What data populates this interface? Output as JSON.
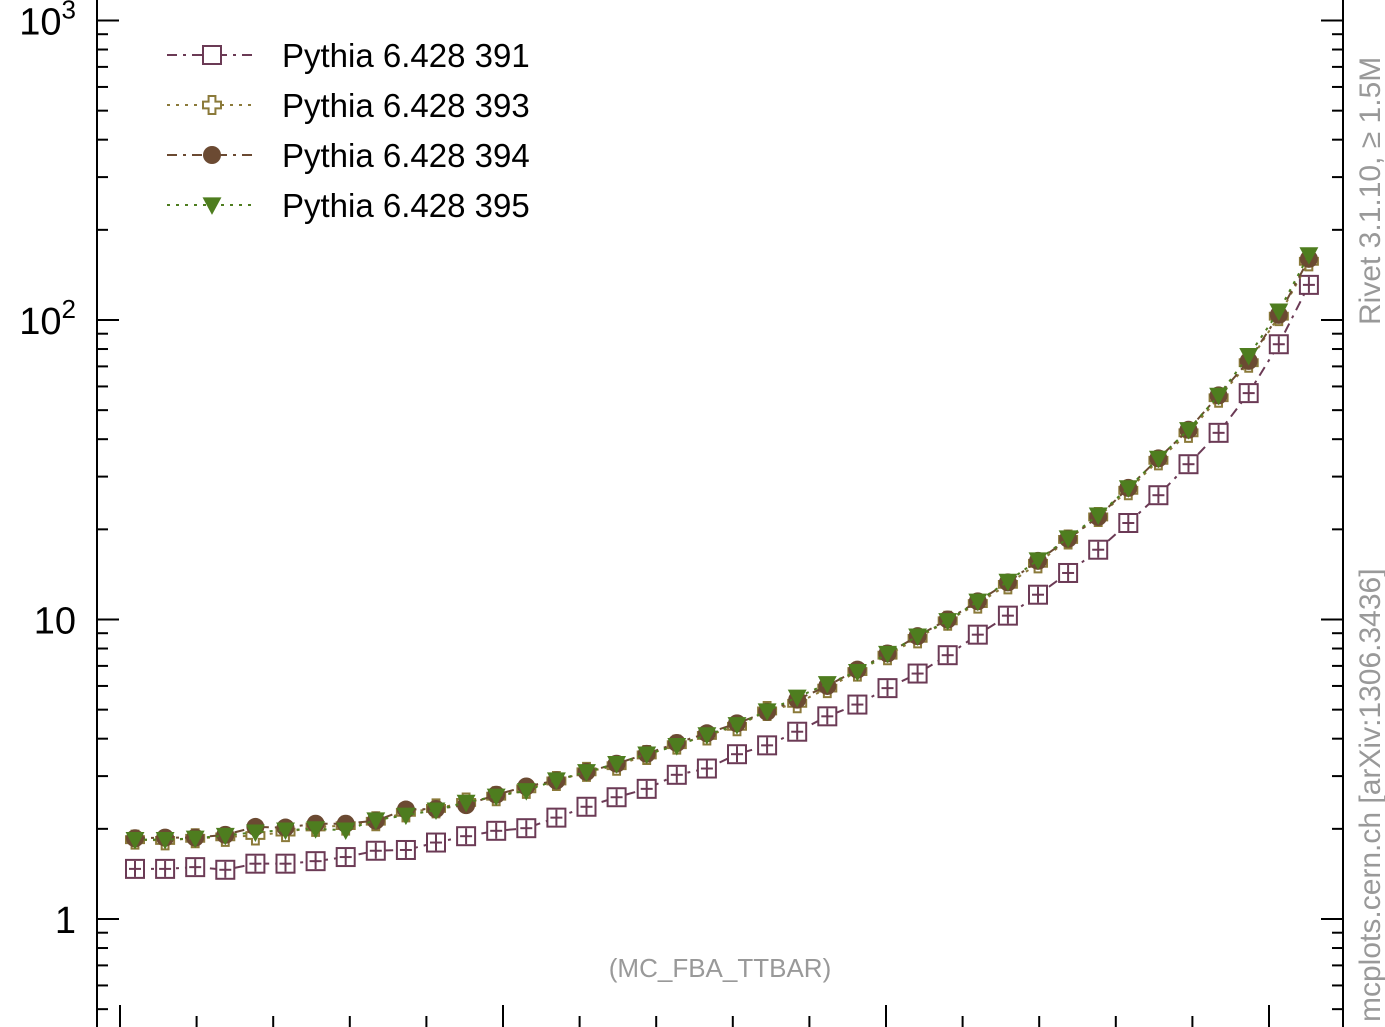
{
  "chart_data": {
    "type": "line",
    "title": "",
    "xlabel": "",
    "ylabel": "",
    "y_scale": "log",
    "y_tick_labels": [
      {
        "value": 1,
        "label": "1"
      },
      {
        "value": 10,
        "label": "10"
      },
      {
        "value": 100,
        "base": "10",
        "exp": "2"
      },
      {
        "value": 1000,
        "base": "10",
        "exp": "3"
      }
    ],
    "legend_position": "top-left",
    "grid": false,
    "annotation": "(MC_FBA_TTBAR)",
    "side_label_top": "Rivet 3.1.10, ≥ 1.5M",
    "side_label_bottom": "mcplots.cern.ch [arXiv:1306.3436]",
    "series": [
      {
        "name": "Pythia 6.428 391",
        "color": "#6b3a55",
        "marker": "open-square",
        "dash": "10,6,3,6",
        "values": [
          1.47,
          1.47,
          1.49,
          1.46,
          1.53,
          1.53,
          1.56,
          1.61,
          1.69,
          1.7,
          1.8,
          1.89,
          1.97,
          2.01,
          2.18,
          2.37,
          2.55,
          2.72,
          3.03,
          3.18,
          3.55,
          3.8,
          4.22,
          4.75,
          5.2,
          5.9,
          6.6,
          7.6,
          8.9,
          10.3,
          12.1,
          14.3,
          17.1,
          21.0,
          26.0,
          33.0,
          42.0,
          57.0,
          83.0,
          131.0
        ]
      },
      {
        "name": "Pythia 6.428 393",
        "color": "#8b7a3a",
        "marker": "open-cross",
        "dash": "3,6",
        "values": [
          1.84,
          1.83,
          1.86,
          1.88,
          1.9,
          1.95,
          2.03,
          2.05,
          2.12,
          2.27,
          2.34,
          2.45,
          2.57,
          2.72,
          2.89,
          3.1,
          3.25,
          3.53,
          3.82,
          4.1,
          4.4,
          4.95,
          5.25,
          5.9,
          6.7,
          7.6,
          8.65,
          9.9,
          11.3,
          13.1,
          15.4,
          18.5,
          22.0,
          27.0,
          34.0,
          42.0,
          55.0,
          72.0,
          103.0,
          157.0
        ]
      },
      {
        "name": "Pythia 6.428 394",
        "color": "#6b4a32",
        "marker": "filled-circle",
        "dash": "10,6,3,6",
        "values": [
          1.86,
          1.87,
          1.87,
          1.91,
          2.03,
          2.02,
          2.08,
          2.08,
          2.13,
          2.32,
          2.33,
          2.4,
          2.6,
          2.77,
          2.9,
          3.1,
          3.3,
          3.56,
          3.87,
          4.17,
          4.5,
          4.92,
          5.4,
          6.0,
          6.8,
          7.7,
          8.8,
          10.0,
          11.5,
          13.3,
          15.7,
          18.6,
          22.0,
          27.5,
          34.5,
          43.0,
          56.0,
          73.0,
          104.0,
          160.0
        ]
      },
      {
        "name": "Pythia 6.428 395",
        "color": "#4e7d1f",
        "marker": "filled-triangle-down",
        "dash": "3,6",
        "values": [
          1.84,
          1.84,
          1.86,
          1.9,
          1.95,
          1.98,
          2.0,
          1.98,
          2.14,
          2.22,
          2.31,
          2.45,
          2.57,
          2.68,
          2.91,
          3.1,
          3.3,
          3.55,
          3.79,
          4.12,
          4.45,
          4.95,
          5.5,
          6.1,
          6.7,
          7.7,
          8.8,
          9.9,
          11.5,
          13.4,
          15.8,
          18.7,
          22.3,
          27.5,
          34.5,
          43.0,
          56.0,
          76.0,
          107.0,
          165.0
        ]
      }
    ]
  }
}
